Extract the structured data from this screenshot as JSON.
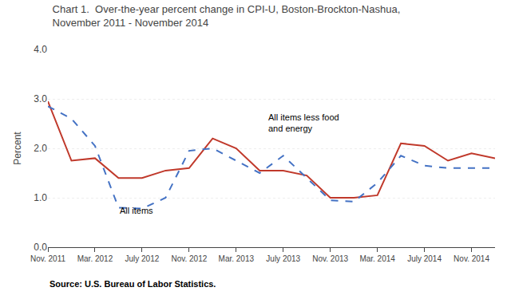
{
  "chart_data": {
    "type": "line",
    "title": "Chart 1.  Over-the-year percent change in CPI-U, Boston-Brockton-Nashua,",
    "subtitle": "November 2011 - November 2014",
    "ylabel": "Percent",
    "source": "Source: U.S. Bureau of Labor Statistics.",
    "categories": [
      "Nov. 2011",
      null,
      "Mar. 2012",
      null,
      "July 2012",
      null,
      "Nov. 2012",
      null,
      "Mar. 2013",
      null,
      "July 2013",
      null,
      "Nov. 2013",
      null,
      "Mar. 2014",
      null,
      "July 2014",
      null,
      "Nov. 2014",
      null
    ],
    "series": [
      {
        "color": "#c0392b",
        "line_style": "solid",
        "values": [
          2.95,
          1.75,
          1.8,
          1.4,
          1.4,
          1.55,
          1.6,
          2.2,
          2.0,
          1.55,
          1.55,
          1.45,
          1.0,
          1.0,
          1.05,
          2.1,
          2.05,
          1.75,
          1.9,
          1.8
        ]
      },
      {
        "color": "#4472c4",
        "line_style": "dashed",
        "values": [
          2.85,
          2.6,
          2.05,
          0.8,
          0.78,
          1.0,
          1.95,
          2.0,
          1.75,
          1.5,
          1.85,
          1.4,
          0.95,
          0.92,
          1.3,
          1.85,
          1.65,
          1.6,
          1.6,
          1.6
        ]
      }
    ],
    "annotations": [
      {
        "text": "All items",
        "x": 3,
        "y": 0.62
      },
      {
        "text": "All items less food\nand energy",
        "x": 9.3,
        "y": 2.28
      }
    ],
    "ylim": [
      0.0,
      4.0
    ],
    "yticks": [
      {
        "value": 0.0,
        "label": "0.0"
      },
      {
        "value": 1.0,
        "label": "1.0"
      },
      {
        "value": 2.0,
        "label": "2.0"
      },
      {
        "value": 3.0,
        "label": "3.0"
      },
      {
        "value": 4.0,
        "label": "4.0"
      }
    ],
    "grid": true
  }
}
